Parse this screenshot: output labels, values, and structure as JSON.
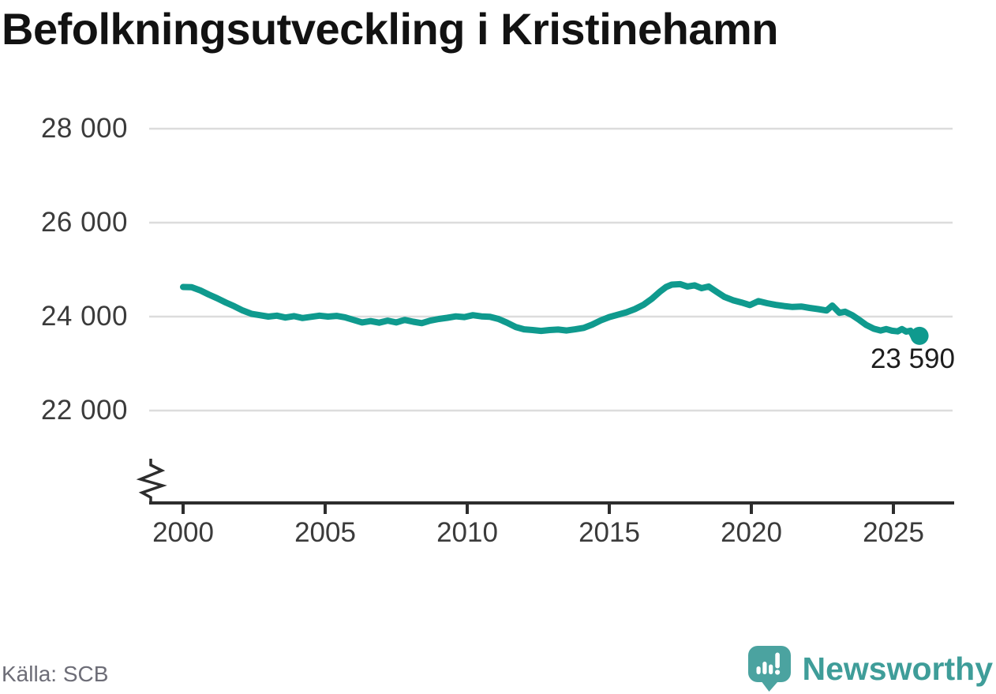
{
  "title": "Befolkningsutveckling i Kristinehamn",
  "source": {
    "text": "Källa: SCB"
  },
  "brand": {
    "name": "Newsworthy",
    "icon": "newsworthy-bubble-chart-icon",
    "text_color": "#3f9d99",
    "icon_color": "#4ba3a0"
  },
  "colors": {
    "line": "#0f9a8e",
    "grid": "#dcdcdc",
    "axis": "#2d2d2d",
    "tick_text": "#3b3b3b",
    "title_text": "#121212",
    "end_label_text": "#1d1d1d",
    "source_text": "#6d6d77"
  },
  "chart_data": {
    "type": "line",
    "title": "Befolkningsutveckling i Kristinehamn",
    "xlabel": "",
    "ylabel": "",
    "grid": "horizontal",
    "y_axis_break": true,
    "legend": "none",
    "xlim": [
      1998.8,
      2027.2
    ],
    "ylim": [
      21300,
      28600
    ],
    "x_ticks": {
      "values": [
        2000,
        2005,
        2010,
        2015,
        2020,
        2025
      ],
      "labels": [
        "2000",
        "2005",
        "2010",
        "2015",
        "2020",
        "2025"
      ]
    },
    "y_ticks": {
      "values": [
        28000,
        26000,
        24000,
        22000
      ],
      "labels": [
        "28 000",
        "26 000",
        "24 000",
        "22 000"
      ]
    },
    "end_label": "23 590",
    "end_value": 23590,
    "points": [
      [
        2000.0,
        24630
      ],
      [
        2000.3,
        24625
      ],
      [
        2000.6,
        24560
      ],
      [
        2000.9,
        24470
      ],
      [
        2001.2,
        24390
      ],
      [
        2001.5,
        24300
      ],
      [
        2001.8,
        24220
      ],
      [
        2002.1,
        24130
      ],
      [
        2002.4,
        24060
      ],
      [
        2002.7,
        24030
      ],
      [
        2003.0,
        24000
      ],
      [
        2003.3,
        24020
      ],
      [
        2003.6,
        23980
      ],
      [
        2003.9,
        24010
      ],
      [
        2004.2,
        23970
      ],
      [
        2004.5,
        23995
      ],
      [
        2004.8,
        24020
      ],
      [
        2005.1,
        24000
      ],
      [
        2005.4,
        24015
      ],
      [
        2005.7,
        23985
      ],
      [
        2006.0,
        23930
      ],
      [
        2006.3,
        23875
      ],
      [
        2006.6,
        23905
      ],
      [
        2006.9,
        23870
      ],
      [
        2007.2,
        23915
      ],
      [
        2007.5,
        23875
      ],
      [
        2007.8,
        23930
      ],
      [
        2008.1,
        23890
      ],
      [
        2008.4,
        23860
      ],
      [
        2008.7,
        23915
      ],
      [
        2009.0,
        23950
      ],
      [
        2009.3,
        23975
      ],
      [
        2009.6,
        24005
      ],
      [
        2009.9,
        23990
      ],
      [
        2010.2,
        24030
      ],
      [
        2010.5,
        24005
      ],
      [
        2010.8,
        23995
      ],
      [
        2011.1,
        23950
      ],
      [
        2011.4,
        23870
      ],
      [
        2011.7,
        23780
      ],
      [
        2012.0,
        23730
      ],
      [
        2012.3,
        23715
      ],
      [
        2012.6,
        23695
      ],
      [
        2012.9,
        23715
      ],
      [
        2013.2,
        23725
      ],
      [
        2013.5,
        23705
      ],
      [
        2013.8,
        23730
      ],
      [
        2014.1,
        23760
      ],
      [
        2014.4,
        23830
      ],
      [
        2014.7,
        23920
      ],
      [
        2015.0,
        23990
      ],
      [
        2015.3,
        24040
      ],
      [
        2015.6,
        24090
      ],
      [
        2015.9,
        24160
      ],
      [
        2016.2,
        24250
      ],
      [
        2016.5,
        24380
      ],
      [
        2016.8,
        24540
      ],
      [
        2017.0,
        24630
      ],
      [
        2017.2,
        24680
      ],
      [
        2017.5,
        24690
      ],
      [
        2017.75,
        24640
      ],
      [
        2018.0,
        24665
      ],
      [
        2018.25,
        24605
      ],
      [
        2018.5,
        24640
      ],
      [
        2018.75,
        24540
      ],
      [
        2019.05,
        24420
      ],
      [
        2019.35,
        24350
      ],
      [
        2019.65,
        24300
      ],
      [
        2019.95,
        24245
      ],
      [
        2020.25,
        24330
      ],
      [
        2020.55,
        24285
      ],
      [
        2020.85,
        24250
      ],
      [
        2021.15,
        24225
      ],
      [
        2021.45,
        24205
      ],
      [
        2021.75,
        24215
      ],
      [
        2022.05,
        24185
      ],
      [
        2022.35,
        24160
      ],
      [
        2022.65,
        24130
      ],
      [
        2022.85,
        24235
      ],
      [
        2023.1,
        24080
      ],
      [
        2023.3,
        24105
      ],
      [
        2023.55,
        24030
      ],
      [
        2023.8,
        23930
      ],
      [
        2024.05,
        23820
      ],
      [
        2024.3,
        23745
      ],
      [
        2024.55,
        23705
      ],
      [
        2024.75,
        23735
      ],
      [
        2024.95,
        23700
      ],
      [
        2025.15,
        23685
      ],
      [
        2025.3,
        23735
      ],
      [
        2025.45,
        23680
      ],
      [
        2025.6,
        23700
      ],
      [
        2025.72,
        23560
      ],
      [
        2025.8,
        23510
      ],
      [
        2025.92,
        23590
      ]
    ]
  }
}
